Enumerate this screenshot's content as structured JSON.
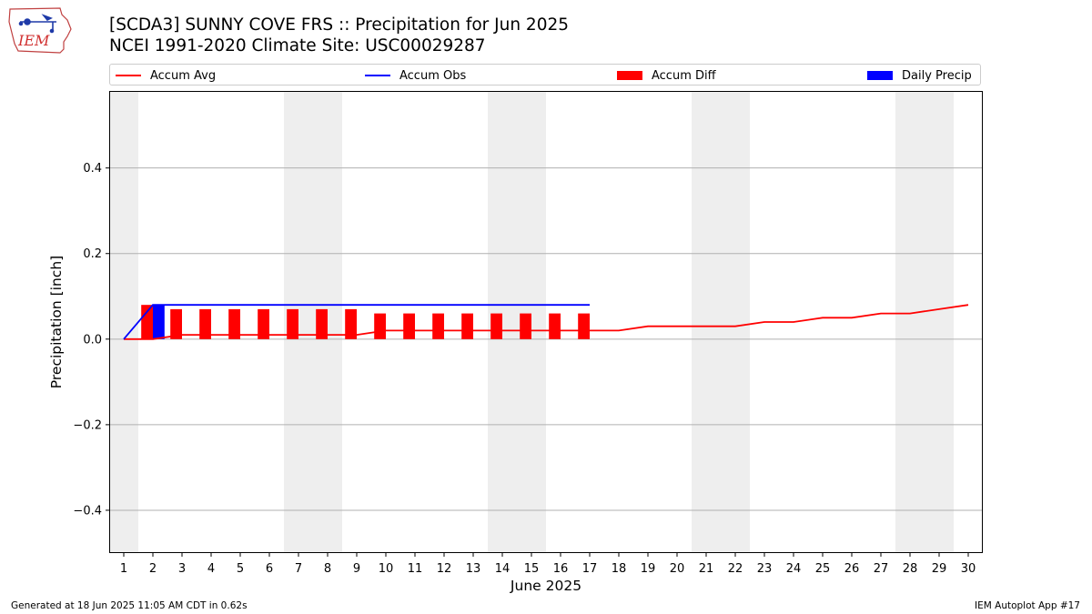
{
  "title_line1": "[SCDA3] SUNNY COVE FRS :: Precipitation for Jun 2025",
  "title_line2": "NCEI 1991-2020 Climate Site: USC00029287",
  "logo_text": "IEM",
  "footer_left": "Generated at 18 Jun 2025 11:05 AM CDT in 0.62s",
  "footer_right": "IEM Autoplot App #17",
  "colors": {
    "accum_avg": "#ff0000",
    "accum_obs": "#0000ff",
    "accum_diff": "#ff0000",
    "daily_precip": "#0000ff",
    "weekend_shade": "#eeeeee",
    "grid": "#b0b0b0"
  },
  "legend": [
    {
      "label": "Accum Avg",
      "kind": "line",
      "color": "#ff0000"
    },
    {
      "label": "Accum Obs",
      "kind": "line",
      "color": "#0000ff"
    },
    {
      "label": "Accum Diff",
      "kind": "patch",
      "color": "#ff0000"
    },
    {
      "label": "Daily Precip",
      "kind": "patch",
      "color": "#0000ff"
    }
  ],
  "chart_data": {
    "type": "bar",
    "xlabel": "June 2025",
    "ylabel": "Precipitation [inch]",
    "xlim": [
      0.5,
      30.5
    ],
    "ylim": [
      -0.5,
      0.58
    ],
    "grid": "y",
    "legend_position": "top",
    "x_ticks": [
      1,
      2,
      3,
      4,
      5,
      6,
      7,
      8,
      9,
      10,
      11,
      12,
      13,
      14,
      15,
      16,
      17,
      18,
      19,
      20,
      21,
      22,
      23,
      24,
      25,
      26,
      27,
      28,
      29,
      30
    ],
    "y_ticks": [
      -0.4,
      -0.2,
      0.0,
      0.2,
      0.4
    ],
    "y_tick_labels": [
      "−0.4",
      "−0.2",
      "0.0",
      "0.2",
      "0.4"
    ],
    "weekend_days": [
      1,
      7,
      8,
      14,
      15,
      21,
      22,
      28,
      29
    ],
    "series": [
      {
        "name": "Accum Avg",
        "kind": "line",
        "x": [
          1,
          2,
          3,
          4,
          5,
          6,
          7,
          8,
          9,
          10,
          11,
          12,
          13,
          14,
          15,
          16,
          17,
          18,
          19,
          20,
          21,
          22,
          23,
          24,
          25,
          26,
          27,
          28,
          29,
          30
        ],
        "values": [
          0.0,
          0.0,
          0.01,
          0.01,
          0.01,
          0.01,
          0.01,
          0.01,
          0.01,
          0.02,
          0.02,
          0.02,
          0.02,
          0.02,
          0.02,
          0.02,
          0.02,
          0.02,
          0.03,
          0.03,
          0.03,
          0.03,
          0.04,
          0.04,
          0.05,
          0.05,
          0.06,
          0.06,
          0.07,
          0.08
        ]
      },
      {
        "name": "Accum Obs",
        "kind": "line",
        "x": [
          1,
          2,
          3,
          4,
          5,
          6,
          7,
          8,
          9,
          10,
          11,
          12,
          13,
          14,
          15,
          16,
          17
        ],
        "values": [
          0.0,
          0.08,
          0.08,
          0.08,
          0.08,
          0.08,
          0.08,
          0.08,
          0.08,
          0.08,
          0.08,
          0.08,
          0.08,
          0.08,
          0.08,
          0.08,
          0.08
        ]
      },
      {
        "name": "Accum Diff",
        "kind": "bar",
        "x": [
          1,
          2,
          3,
          4,
          5,
          6,
          7,
          8,
          9,
          10,
          11,
          12,
          13,
          14,
          15,
          16,
          17
        ],
        "values": [
          0.0,
          0.08,
          0.07,
          0.07,
          0.07,
          0.07,
          0.07,
          0.07,
          0.07,
          0.06,
          0.06,
          0.06,
          0.06,
          0.06,
          0.06,
          0.06,
          0.06
        ]
      },
      {
        "name": "Daily Precip",
        "kind": "bar",
        "x": [
          2
        ],
        "values": [
          0.08
        ]
      }
    ]
  }
}
